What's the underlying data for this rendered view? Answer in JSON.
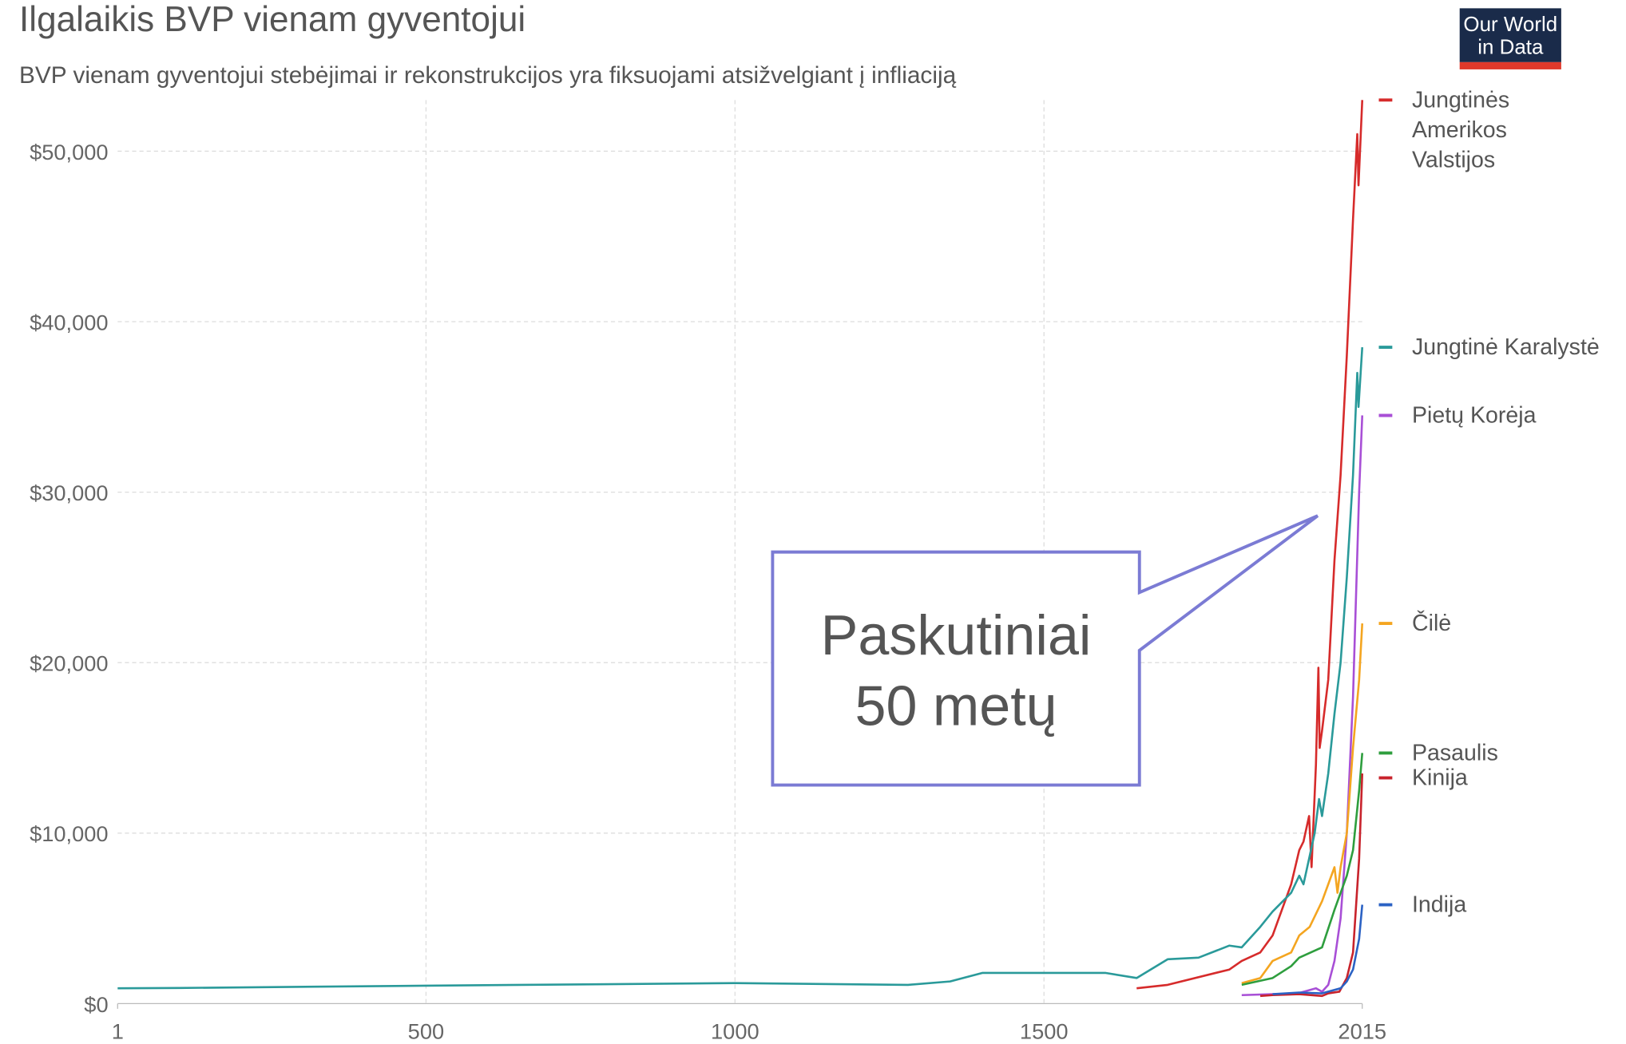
{
  "chart_data": {
    "type": "line",
    "title": "Ilgalaikis BVP vienam gyventojui",
    "subtitle": "BVP vienam gyventojui stebėjimai ir rekonstrukcijos yra fiksuojami atsižvelgiant į infliaciją",
    "logo": [
      "Our World",
      "in Data"
    ],
    "annotation": [
      "Paskutiniai",
      "50 metų"
    ],
    "xlim": [
      1,
      2015
    ],
    "xticks": [
      1,
      500,
      1000,
      1500,
      2015
    ],
    "ylim": [
      0,
      53000
    ],
    "yticks": [
      {
        "value": 0,
        "label": "$0"
      },
      {
        "value": 10000,
        "label": "$10,000"
      },
      {
        "value": 20000,
        "label": "$20,000"
      },
      {
        "value": 30000,
        "label": "$30,000"
      },
      {
        "value": 40000,
        "label": "$40,000"
      },
      {
        "value": 50000,
        "label": "$50,000"
      }
    ],
    "grid": true,
    "series": [
      {
        "name": "Jungtinės Amerikos Valstijos",
        "color": "#d62b2b",
        "x": [
          1650,
          1700,
          1800,
          1820,
          1850,
          1870,
          1900,
          1913,
          1920,
          1929,
          1933,
          1940,
          1944,
          1946,
          1950,
          1960,
          1970,
          1980,
          1990,
          2000,
          2007,
          2009,
          2015
        ],
        "values": [
          900,
          1100,
          2000,
          2500,
          3000,
          4000,
          7000,
          9000,
          9500,
          11000,
          8000,
          14000,
          19700,
          15000,
          16000,
          19000,
          26000,
          31000,
          38000,
          46000,
          51000,
          48000,
          53000
        ]
      },
      {
        "name": "Jungtinė Karalystė",
        "color": "#2a9a9a",
        "x": [
          1,
          100,
          500,
          1000,
          1280,
          1348,
          1400,
          1600,
          1650,
          1700,
          1750,
          1800,
          1820,
          1850,
          1870,
          1900,
          1913,
          1920,
          1938,
          1945,
          1950,
          1960,
          1970,
          1980,
          1990,
          2000,
          2007,
          2009,
          2015
        ],
        "values": [
          900,
          920,
          1050,
          1200,
          1100,
          1300,
          1800,
          1800,
          1500,
          2600,
          2700,
          3400,
          3300,
          4500,
          5400,
          6500,
          7500,
          7000,
          10000,
          12000,
          11000,
          13500,
          17000,
          20000,
          25000,
          31000,
          37000,
          35000,
          38500
        ]
      },
      {
        "name": "Pietų Korėja",
        "color": "#a84fd6",
        "x": [
          1820,
          1911,
          1940,
          1950,
          1960,
          1970,
          1980,
          1990,
          2000,
          2010,
          2015
        ],
        "values": [
          500,
          600,
          900,
          700,
          1100,
          2500,
          5000,
          10000,
          18000,
          30000,
          34500
        ]
      },
      {
        "name": "Čilė",
        "color": "#f4a520",
        "x": [
          1820,
          1850,
          1870,
          1900,
          1913,
          1930,
          1950,
          1970,
          1975,
          1980,
          1990,
          2000,
          2010,
          2015
        ],
        "values": [
          1200,
          1500,
          2500,
          3000,
          4000,
          4500,
          6000,
          8000,
          6500,
          8000,
          10000,
          15000,
          19000,
          22300
        ]
      },
      {
        "name": "Pasaulis",
        "color": "#2e9e3e",
        "x": [
          1820,
          1870,
          1900,
          1913,
          1950,
          1970,
          1990,
          2000,
          2010,
          2015
        ],
        "values": [
          1100,
          1500,
          2200,
          2700,
          3300,
          5500,
          7500,
          9000,
          12500,
          14700
        ]
      },
      {
        "name": "Kinija",
        "color": "#c8232c",
        "x": [
          1850,
          1870,
          1913,
          1950,
          1960,
          1978,
          1990,
          2000,
          2010,
          2015
        ],
        "values": [
          450,
          500,
          550,
          450,
          600,
          700,
          1500,
          3000,
          8500,
          13500
        ]
      },
      {
        "name": "Indija",
        "color": "#2b62c4",
        "x": [
          1870,
          1913,
          1950,
          1980,
          1990,
          2000,
          2010,
          2015
        ],
        "values": [
          550,
          650,
          600,
          900,
          1300,
          2000,
          3800,
          5800
        ]
      }
    ]
  }
}
